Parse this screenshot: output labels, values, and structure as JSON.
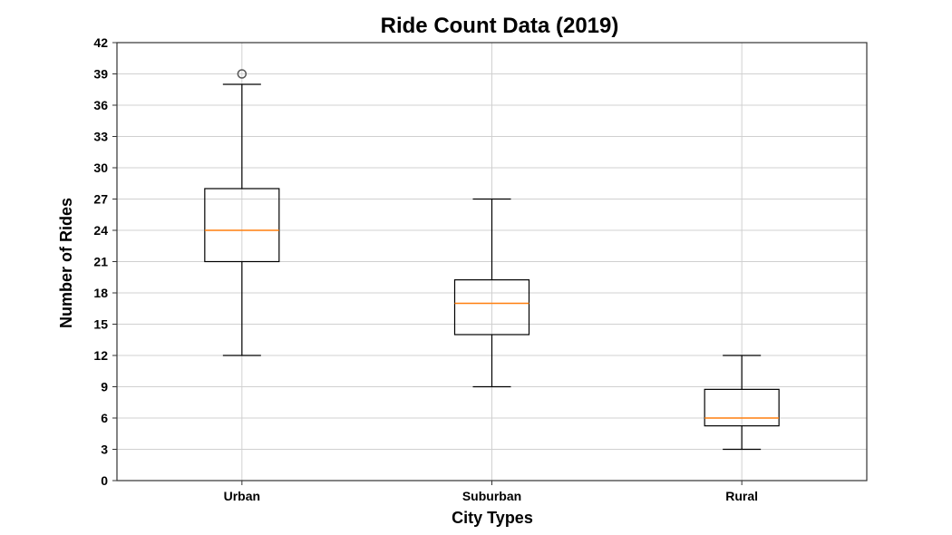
{
  "chart_data": {
    "type": "box",
    "title": "Ride Count Data (2019)",
    "xlabel": "City Types",
    "ylabel": "Number of Rides",
    "ylim": [
      0,
      42
    ],
    "yticks": [
      0,
      3,
      6,
      9,
      12,
      15,
      18,
      21,
      24,
      27,
      30,
      33,
      36,
      39,
      42
    ],
    "grid": true,
    "categories": [
      "Urban",
      "Suburban",
      "Rural"
    ],
    "boxes": [
      {
        "category": "Urban",
        "whisker_low": 12,
        "q1": 21,
        "median": 24,
        "q3": 28,
        "whisker_high": 38,
        "outliers": [
          39
        ]
      },
      {
        "category": "Suburban",
        "whisker_low": 9,
        "q1": 14,
        "median": 17,
        "q3": 19.25,
        "whisker_high": 27,
        "outliers": []
      },
      {
        "category": "Rural",
        "whisker_low": 3,
        "q1": 5.25,
        "median": 6,
        "q3": 8.75,
        "whisker_high": 12,
        "outliers": []
      }
    ],
    "colors": {
      "median": "#ff7f0e",
      "box": "#000000",
      "grid": "#d0d0d0",
      "outlier": "#555555"
    }
  }
}
